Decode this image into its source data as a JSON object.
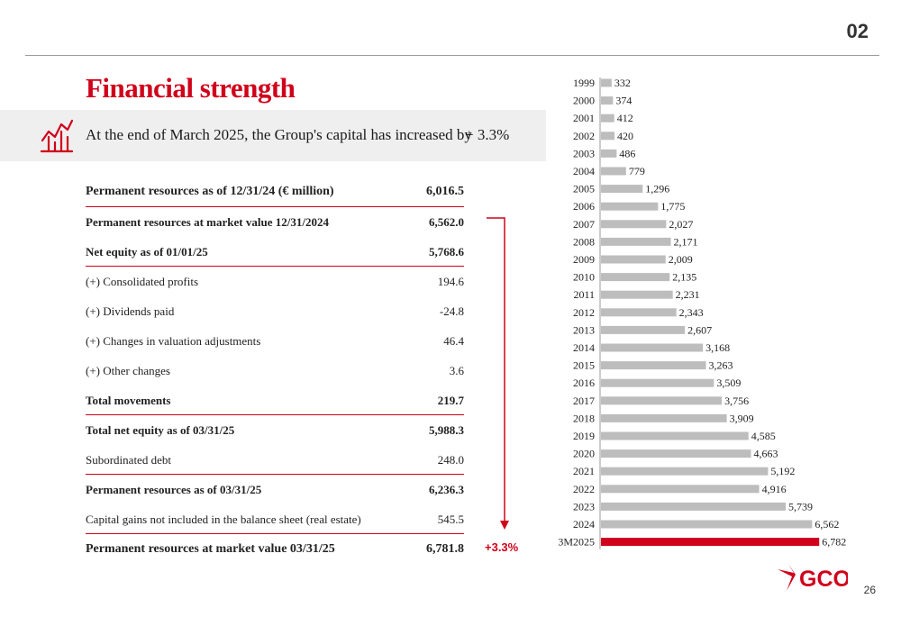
{
  "header": {
    "section_number": "02",
    "page_number": "26"
  },
  "title": "Financial strength",
  "highlight": {
    "icon": "line-chart-growth-icon",
    "text": "At the end of March 2025, the Group's capital has increased by",
    "value": "+ 3.3%"
  },
  "table": {
    "rows": [
      {
        "label": "Permanent resources as of 12/31/24 (€ million)",
        "value": "6,016.5",
        "bold": true,
        "line": true,
        "kind": "header"
      },
      {
        "label": "Permanent resources at market value 12/31/2024",
        "value": "6,562.0",
        "bold": true,
        "line": false
      },
      {
        "label": "Net equity as of 01/01/25",
        "value": "5,768.6",
        "bold": true,
        "line": true
      },
      {
        "label": "(+) Consolidated profits",
        "value": "194.6",
        "bold": false,
        "line": false
      },
      {
        "label": "(+) Dividends paid",
        "value": "-24.8",
        "bold": false,
        "line": false
      },
      {
        "label": "(+) Changes in valuation adjustments",
        "value": "46.4",
        "bold": false,
        "line": false
      },
      {
        "label": "(+) Other changes",
        "value": "3.6",
        "bold": false,
        "line": false
      },
      {
        "label": "Total movements",
        "value": "219.7",
        "bold": true,
        "line": true
      },
      {
        "label": "Total net equity as of 03/31/25",
        "value": "5,988.3",
        "bold": true,
        "line": false
      },
      {
        "label": "Subordinated debt",
        "value": "248.0",
        "bold": false,
        "line": true
      },
      {
        "label": "Permanent resources as of 03/31/25",
        "value": "6,236.3",
        "bold": true,
        "line": false
      },
      {
        "label": "Capital gains not included in the balance sheet (real estate)",
        "value": "545.5",
        "bold": false,
        "line": true
      },
      {
        "label": "Permanent resources at market value 03/31/25",
        "value": "6,781.8",
        "bold": true,
        "line": false,
        "kind": "final"
      }
    ],
    "growth_label": "+3.3%"
  },
  "chart_data": {
    "type": "bar",
    "orientation": "horizontal",
    "categories": [
      "1999",
      "2000",
      "2001",
      "2002",
      "2003",
      "2004",
      "2005",
      "2006",
      "2007",
      "2008",
      "2009",
      "2010",
      "2011",
      "2012",
      "2013",
      "2014",
      "2015",
      "2016",
      "2017",
      "2018",
      "2019",
      "2020",
      "2021",
      "2022",
      "2023",
      "2024",
      "3M2025"
    ],
    "values": [
      332,
      374,
      412,
      420,
      486,
      779,
      1296,
      1775,
      2027,
      2171,
      2009,
      2135,
      2231,
      2343,
      2607,
      3168,
      3263,
      3509,
      3756,
      3909,
      4585,
      4663,
      5192,
      4916,
      5739,
      6562,
      6782
    ],
    "value_labels": [
      "332",
      "374",
      "412",
      "420",
      "486",
      "779",
      "1,296",
      "1,775",
      "2,027",
      "2,171",
      "2,009",
      "2,135",
      "2,231",
      "2,343",
      "2,607",
      "3,168",
      "3,263",
      "3,509",
      "3,756",
      "3,909",
      "4,585",
      "4,663",
      "5,192",
      "4,916",
      "5,739",
      "6,562",
      "6,782"
    ],
    "title": "",
    "xlabel": "",
    "ylabel": "",
    "xlim": [
      0,
      7000
    ],
    "grid": false,
    "colors": {
      "default": "#bdbdbd",
      "highlight": "#d0021b",
      "highlight_category": "3M2025"
    }
  },
  "logo": {
    "text": "GCO",
    "color": "#d0021b"
  },
  "colors": {
    "accent": "#d0021b",
    "band": "#efefef"
  }
}
